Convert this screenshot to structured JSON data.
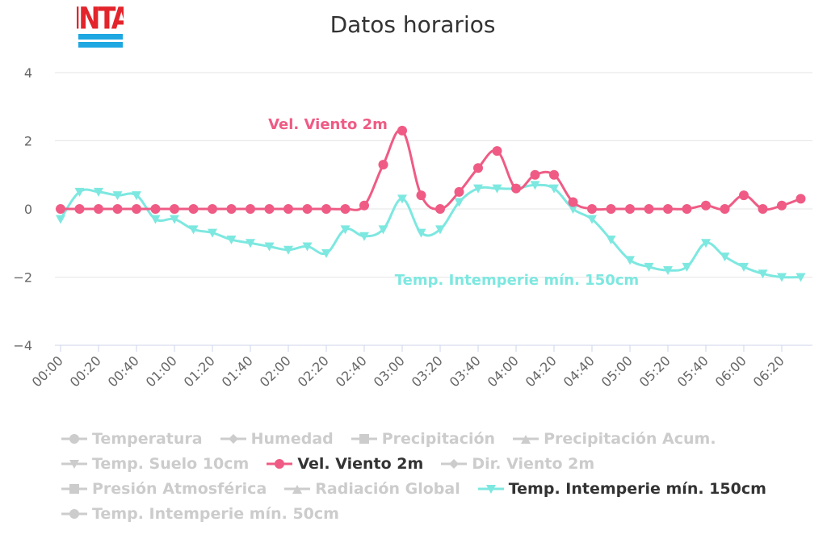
{
  "logo": {
    "text": "INTA",
    "color": "#e3242b",
    "stripe_color": "#1ea7e1"
  },
  "colors": {
    "wind": "#ef5b84",
    "temp": "#7de8e0",
    "grid": "#e6e6e6",
    "axis": "#666666",
    "hidden": "#cccccc"
  },
  "legend": [
    {
      "label": "Temperatura",
      "symbol": "circle",
      "visible": false
    },
    {
      "label": "Humedad",
      "symbol": "diamond",
      "visible": false
    },
    {
      "label": "Precipitación",
      "symbol": "square",
      "visible": false
    },
    {
      "label": "Precipitación Acum.",
      "symbol": "triangle",
      "visible": false
    },
    {
      "label": "Temp. Suelo 10cm",
      "symbol": "triangle-down",
      "visible": false
    },
    {
      "label": "Vel. Viento 2m",
      "symbol": "circle",
      "visible": true,
      "color": "#ef5b84"
    },
    {
      "label": "Dir. Viento 2m",
      "symbol": "diamond",
      "visible": false
    },
    {
      "label": "Presión Atmosférica",
      "symbol": "square",
      "visible": false
    },
    {
      "label": "Radiación Global",
      "symbol": "triangle",
      "visible": false
    },
    {
      "label": "Temp. Intemperie mín. 150cm",
      "symbol": "triangle-down",
      "visible": true,
      "color": "#7de8e0"
    },
    {
      "label": "Temp. Intemperie mín. 50cm",
      "symbol": "circle",
      "visible": false
    }
  ],
  "chart_data": {
    "type": "line",
    "title": "Datos horarios",
    "xlabel": "",
    "ylabel": "",
    "ylim": [
      -4,
      4
    ],
    "yticks": [
      4,
      2,
      0,
      -2,
      -4
    ],
    "grid": true,
    "x": [
      "00:00",
      "00:10",
      "00:20",
      "00:30",
      "00:40",
      "00:50",
      "01:00",
      "01:10",
      "01:20",
      "01:30",
      "01:40",
      "01:50",
      "02:00",
      "02:10",
      "02:20",
      "02:30",
      "02:40",
      "02:50",
      "03:00",
      "03:10",
      "03:20",
      "03:30",
      "03:40",
      "03:50",
      "04:00",
      "04:10",
      "04:20",
      "04:30",
      "04:40",
      "04:50",
      "05:00",
      "05:10",
      "05:20",
      "05:30",
      "05:40",
      "05:50",
      "06:00",
      "06:10",
      "06:20",
      "06:30"
    ],
    "xtick_labels": [
      "00:00",
      "00:20",
      "00:40",
      "01:00",
      "01:20",
      "01:40",
      "02:00",
      "02:20",
      "02:40",
      "03:00",
      "03:20",
      "03:40",
      "04:00",
      "04:20",
      "04:40",
      "05:00",
      "05:20",
      "05:40",
      "06:00",
      "06:20"
    ],
    "series": [
      {
        "name": "Vel. Viento 2m",
        "color": "#ef5b84",
        "marker": "circle",
        "values": [
          0,
          0,
          0,
          0,
          0,
          0,
          0,
          0,
          0,
          0,
          0,
          0,
          0,
          0,
          0,
          0,
          0.1,
          1.3,
          2.3,
          0.4,
          0,
          0.5,
          1.2,
          1.7,
          0.6,
          1.0,
          1.0,
          0.2,
          0,
          0,
          0,
          0,
          0,
          0,
          0.1,
          0,
          0.4,
          0,
          0.1,
          0.3
        ]
      },
      {
        "name": "Temp. Intemperie mín. 150cm",
        "color": "#7de8e0",
        "marker": "triangle-down",
        "values": [
          -0.3,
          0.5,
          0.5,
          0.4,
          0.4,
          -0.3,
          -0.3,
          -0.6,
          -0.7,
          -0.9,
          -1.0,
          -1.1,
          -1.2,
          -1.1,
          -1.3,
          -0.6,
          -0.8,
          -0.6,
          0.3,
          -0.7,
          -0.6,
          0.2,
          0.6,
          0.6,
          0.6,
          0.7,
          0.6,
          0,
          -0.3,
          -0.9,
          -1.5,
          -1.7,
          -1.8,
          -1.7,
          -1.0,
          -1.4,
          -1.7,
          -1.9,
          -2.0,
          -2.0
        ]
      }
    ],
    "annotations": [
      {
        "text": "Vel. Viento 2m",
        "series": 0
      },
      {
        "text": "Temp. Intemperie mín. 150cm",
        "series": 1
      }
    ]
  }
}
